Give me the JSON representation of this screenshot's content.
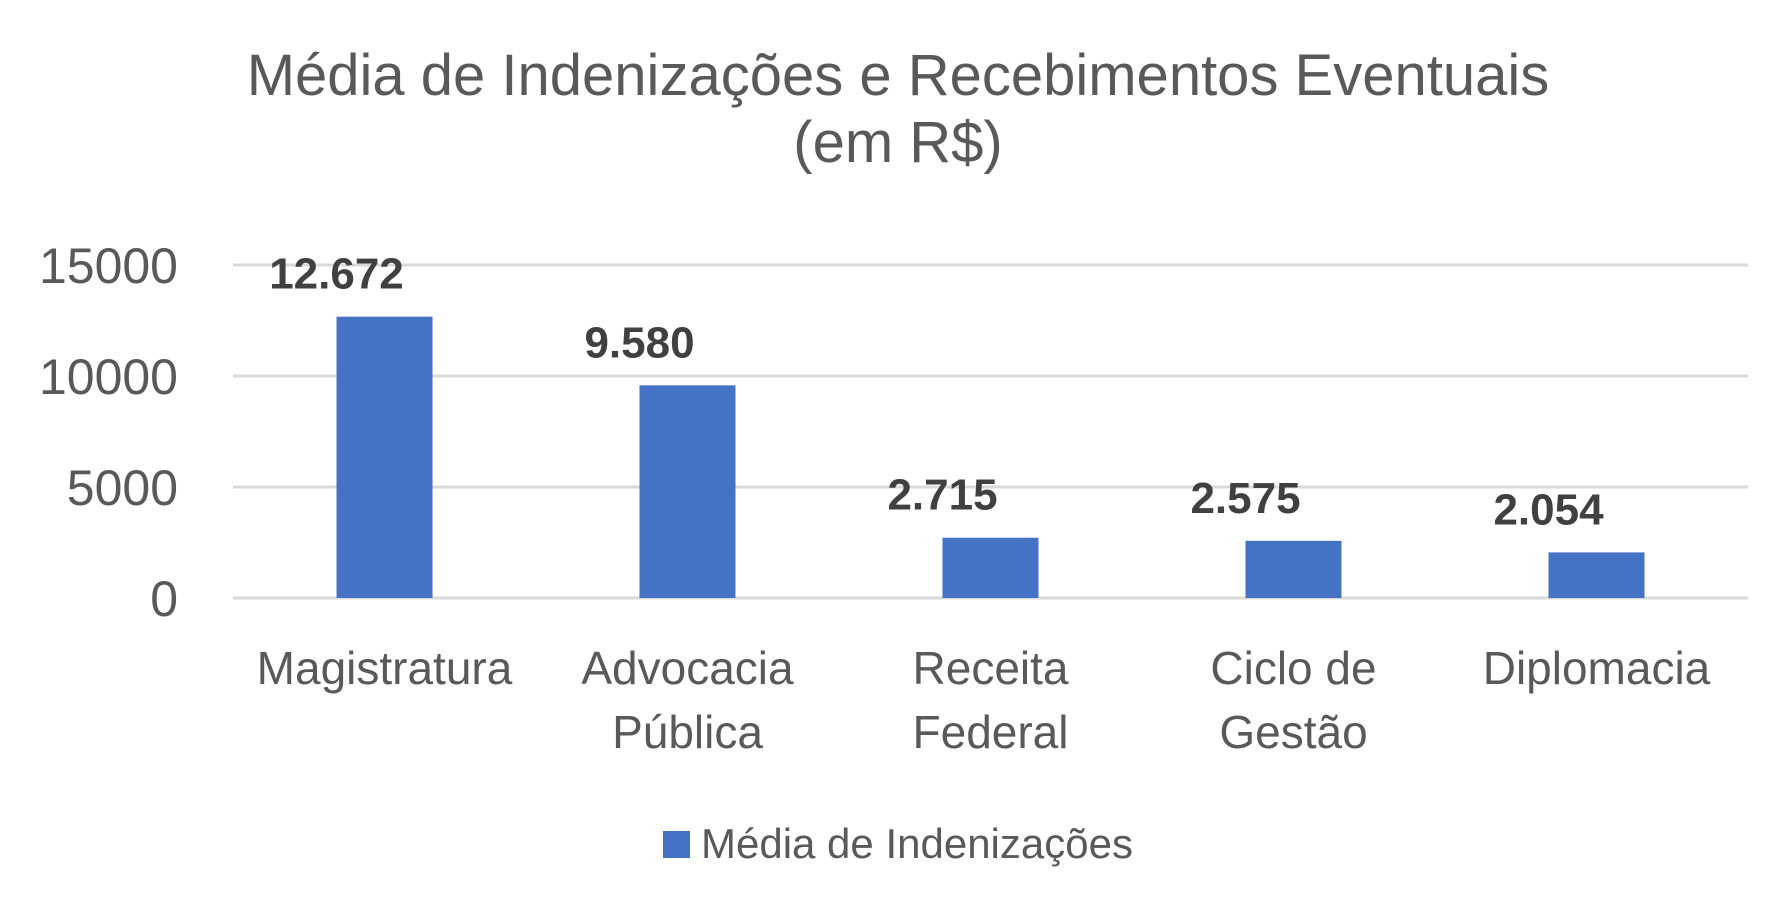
{
  "chart_data": {
    "type": "bar",
    "title": [
      "Média de Indenizações e Recebimentos Eventuais",
      "(em R$)"
    ],
    "categories": [
      [
        "Magistratura"
      ],
      [
        "Advocacia",
        "Pública"
      ],
      [
        "Receita",
        "Federal"
      ],
      [
        "Ciclo de",
        "Gestão"
      ],
      [
        "Diplomacia"
      ]
    ],
    "series": [
      {
        "name": "Média de Indenizações",
        "color": "#4472c4",
        "values": [
          12672,
          9580,
          2715,
          2575,
          2054
        ],
        "labels": [
          "12.672",
          "9.580",
          "2.715",
          "2.575",
          "2.054"
        ]
      }
    ],
    "ylim": [
      0,
      15000
    ],
    "yticks": [
      0,
      5000,
      10000,
      15000
    ],
    "ytick_labels": [
      "0",
      "5000",
      "10000",
      "15000"
    ],
    "grid": true,
    "legend": "bottom"
  }
}
